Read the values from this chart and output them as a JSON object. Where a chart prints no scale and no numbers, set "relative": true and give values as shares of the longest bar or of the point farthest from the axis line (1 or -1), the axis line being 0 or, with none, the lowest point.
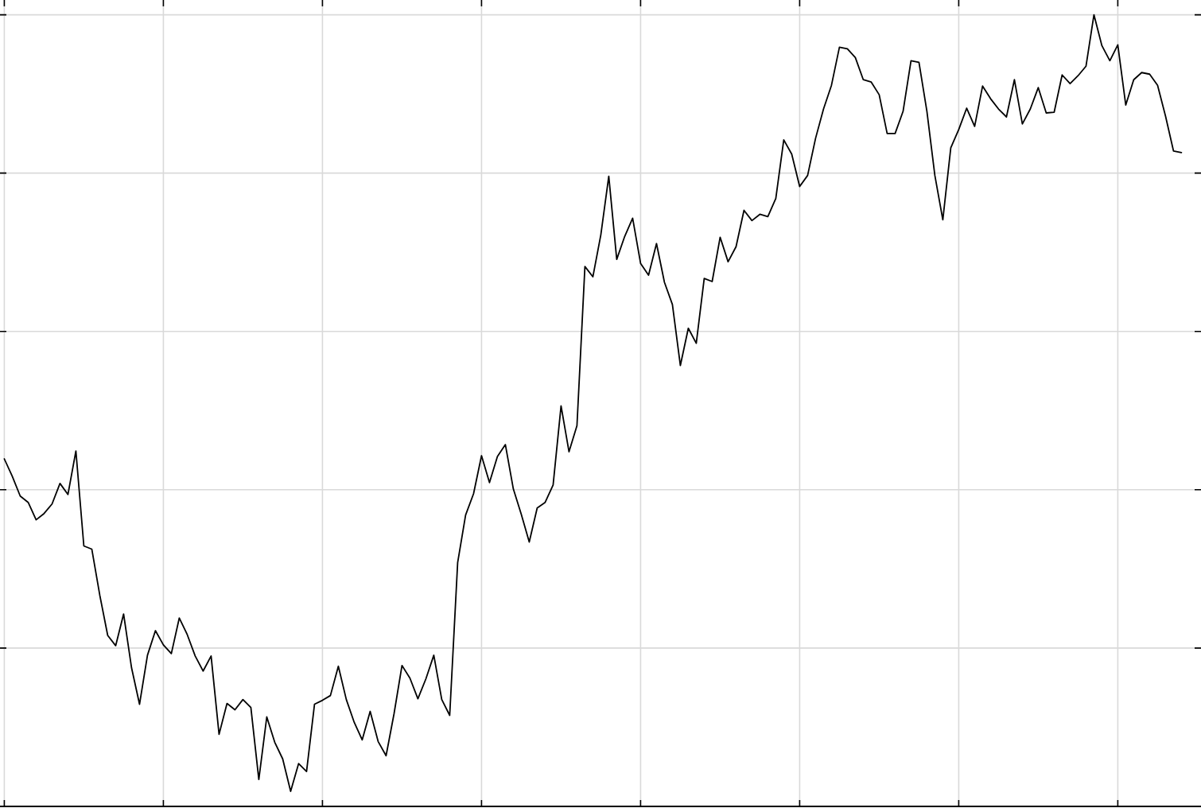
{
  "chart_data": {
    "type": "line",
    "relative": true,
    "grid": true,
    "color": "#000000",
    "categories": [
      null,
      null,
      null,
      null,
      null,
      null,
      null,
      null,
      null,
      null,
      null,
      null,
      null,
      null,
      null,
      null,
      null,
      null,
      null,
      null,
      null,
      null,
      null,
      null,
      null,
      null,
      null,
      null,
      null,
      null,
      null,
      null,
      null,
      null,
      null,
      null,
      null,
      null,
      null,
      null,
      null,
      null,
      null,
      null,
      null,
      null,
      null,
      null,
      null,
      null,
      null,
      null,
      null,
      null,
      null,
      null,
      null,
      null,
      null,
      null,
      null,
      null,
      null,
      null,
      null,
      null,
      null,
      null,
      null,
      null,
      null,
      null,
      null,
      null,
      null,
      null,
      null,
      null,
      null,
      null,
      null,
      null,
      null,
      null,
      null,
      null,
      null,
      null,
      null,
      null,
      null,
      null,
      null,
      null,
      null,
      null,
      null,
      null,
      null,
      null,
      null,
      null,
      null,
      null,
      null,
      null,
      null,
      null,
      null,
      null,
      null,
      null,
      null,
      null,
      null,
      null,
      null,
      null,
      null,
      null,
      null,
      null,
      null,
      null,
      null,
      null,
      null,
      null,
      null,
      null,
      null,
      null,
      null,
      null,
      null,
      null,
      null,
      null,
      null,
      null,
      null,
      null,
      null,
      null,
      null,
      null,
      null,
      null,
      null
    ],
    "values": [
      0.439,
      0.417,
      0.392,
      0.384,
      0.362,
      0.37,
      0.382,
      0.408,
      0.394,
      0.449,
      0.329,
      0.325,
      0.267,
      0.216,
      0.203,
      0.243,
      0.175,
      0.129,
      0.191,
      0.222,
      0.204,
      0.193,
      0.238,
      0.217,
      0.19,
      0.171,
      0.19,
      0.091,
      0.13,
      0.122,
      0.135,
      0.125,
      0.034,
      0.113,
      0.081,
      0.06,
      0.019,
      0.054,
      0.044,
      0.129,
      0.134,
      0.14,
      0.177,
      0.135,
      0.106,
      0.084,
      0.12,
      0.082,
      0.064,
      0.117,
      0.178,
      0.162,
      0.136,
      0.161,
      0.191,
      0.135,
      0.115,
      0.308,
      0.368,
      0.395,
      0.443,
      0.409,
      0.442,
      0.457,
      0.401,
      0.369,
      0.334,
      0.377,
      0.384,
      0.406,
      0.506,
      0.448,
      0.481,
      0.682,
      0.669,
      0.722,
      0.796,
      0.691,
      0.72,
      0.743,
      0.686,
      0.671,
      0.711,
      0.662,
      0.634,
      0.557,
      0.604,
      0.585,
      0.667,
      0.663,
      0.719,
      0.688,
      0.707,
      0.753,
      0.74,
      0.748,
      0.745,
      0.768,
      0.842,
      0.824,
      0.783,
      0.797,
      0.844,
      0.881,
      0.911,
      0.959,
      0.957,
      0.946,
      0.918,
      0.915,
      0.899,
      0.85,
      0.85,
      0.878,
      0.942,
      0.94,
      0.878,
      0.797,
      0.741,
      0.832,
      0.855,
      0.882,
      0.859,
      0.91,
      0.894,
      0.881,
      0.871,
      0.918,
      0.862,
      0.881,
      0.908,
      0.876,
      0.877,
      0.924,
      0.913,
      0.923,
      0.935,
      1,
      0.961,
      0.942,
      0.962,
      0.886,
      0.918,
      0.927,
      0.925,
      0.911,
      0.872,
      0.828,
      0.826
    ]
  }
}
